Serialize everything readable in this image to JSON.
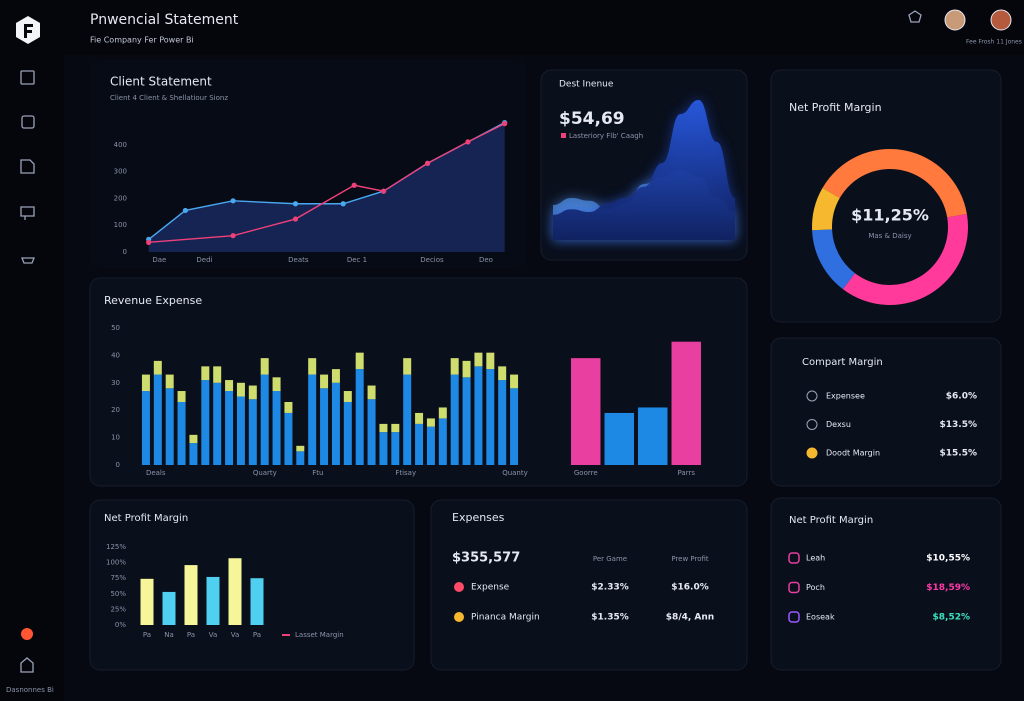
{
  "header": {
    "title": "Pnwencial Statement",
    "subtitle": "Fie Company Fer Power Bi",
    "user": "Fee Frosh 11 Jones"
  },
  "sidebar": {
    "footer": "Dasnonnes Bi"
  },
  "client_statement": {
    "type": "line",
    "title": "Client Statement",
    "subtitle": "Client 4 Client & Shellatiour Sionz",
    "xlim": [
      0,
      100
    ],
    "xticks": [
      {
        "value": 2,
        "label": "Dae"
      },
      {
        "value": 14,
        "label": "Dedi"
      },
      {
        "value": 39,
        "label": "Deats"
      },
      {
        "value": 55,
        "label": "Dec 1"
      },
      {
        "value": 75,
        "label": "Decios"
      },
      {
        "value": 91,
        "label": "Deo"
      }
    ],
    "ylim": [
      0,
      500
    ],
    "yticks": [
      0,
      100,
      200,
      300,
      400
    ],
    "series": [
      {
        "color": "#4aa8f0",
        "fill": "#18295e",
        "x": [
          1,
          11,
          24,
          41,
          54,
          65,
          77,
          98
        ],
        "values": [
          47,
          155,
          191,
          180,
          180,
          227,
          331,
          483
        ]
      },
      {
        "color": "#f0407a",
        "x": [
          1,
          24,
          41,
          57,
          65,
          77,
          88,
          98
        ],
        "values": [
          36,
          61,
          123,
          249,
          227,
          331,
          411,
          479
        ]
      }
    ]
  },
  "dest_revenue": {
    "type": "area",
    "title": "Dest Inenue",
    "value": "$54,69",
    "legend_label": "Lasteriory Flb' Caagh",
    "legend_color": "#f0407a",
    "series": [
      {
        "color": "#5aa0ff",
        "values": [
          25,
          30,
          28,
          22,
          26,
          40,
          45,
          50,
          45,
          30,
          20
        ]
      },
      {
        "color": "#2350d8",
        "values": [
          18,
          22,
          20,
          26,
          30,
          38,
          55,
          90,
          100,
          70,
          30
        ]
      }
    ]
  },
  "net_profit_donut": {
    "type": "donut",
    "title": "Net Profit Margin",
    "center_value": "$11,25%",
    "center_label": "Mas & Daisy",
    "values": [
      39,
      38,
      14,
      9
    ],
    "colors": [
      "#ff7a3c",
      "#ff3a9a",
      "#2f6fe0",
      "#f5b82e"
    ]
  },
  "revenue_expense": {
    "type": "stacked_bar",
    "title": "Revenue Expense",
    "ylim": [
      0,
      50
    ],
    "yticks": [
      0,
      10,
      20,
      30,
      40,
      50
    ],
    "categories": [
      "Deals",
      null,
      null,
      null,
      null,
      null,
      null,
      null,
      null,
      "Quarty",
      null,
      null,
      null,
      null,
      "Ftu",
      null,
      null,
      null,
      null,
      null,
      null,
      "Ftisay",
      null,
      null,
      null,
      null,
      null,
      null,
      null,
      null,
      "Quanty",
      null
    ],
    "series": [
      {
        "color": "#1e88e5",
        "values": [
          27,
          33,
          28,
          23,
          8,
          31,
          30,
          27,
          25,
          24,
          33,
          27,
          19,
          5,
          33,
          28,
          30,
          23,
          35,
          24,
          12,
          12,
          33,
          15,
          14,
          17,
          33,
          32,
          36,
          35,
          31,
          28
        ]
      },
      {
        "color": "#cfdc6e",
        "values": [
          6,
          5,
          5,
          4,
          3,
          5,
          6,
          4,
          5,
          5,
          6,
          5,
          4,
          2,
          6,
          5,
          5,
          4,
          6,
          5,
          3,
          3,
          6,
          4,
          3,
          4,
          6,
          6,
          5,
          6,
          5,
          5
        ]
      }
    ],
    "side": {
      "categories": [
        "Goorre",
        null,
        null,
        "Parrs"
      ],
      "values": [
        39,
        19,
        21,
        45
      ],
      "colors": [
        "#e83fa0",
        "#1e88e5",
        "#1e88e5",
        "#e83fa0"
      ]
    }
  },
  "compart_margin": {
    "title": "Compart Margin",
    "rows": [
      {
        "label": "Expensee",
        "value": "$6.0%"
      },
      {
        "label": "Dexsu",
        "value": "$13.5%"
      },
      {
        "label": "Doodt Margin",
        "value": "$15.5%"
      }
    ]
  },
  "small_bar": {
    "type": "bar",
    "title": "Net Profit Margin",
    "ylim": [
      0,
      125
    ],
    "yticks": [
      {
        "value": 0,
        "label": "0%"
      },
      {
        "value": 25,
        "label": "25%"
      },
      {
        "value": 50,
        "label": "50%"
      },
      {
        "value": 75,
        "label": "75%"
      },
      {
        "value": 100,
        "label": "100%"
      },
      {
        "value": 125,
        "label": "125%"
      }
    ],
    "categories": [
      "Pa",
      "Na",
      "Pa",
      "Va",
      "Va",
      "Pa"
    ],
    "values": [
      74,
      53,
      96,
      77,
      107,
      75
    ],
    "colors": [
      "#f6f59a",
      "#4fd0f0",
      "#f6f59a",
      "#4fd0f0",
      "#f6f59a",
      "#4fd0f0"
    ],
    "legend_label": "Lasset Margin",
    "legend_color": "#f0407a"
  },
  "expenses": {
    "title": "Expenses",
    "total": "$355,577",
    "columns": [
      "Per Game",
      "Prew Profit"
    ],
    "rows": [
      {
        "label": "Expense",
        "values": [
          "$2.33%",
          "$16.0%"
        ]
      },
      {
        "label": "Pinanca Margin",
        "values": [
          "$1.35%",
          "$8/4, Ann"
        ]
      }
    ]
  },
  "profit_list": {
    "title": "Net Profit Margin",
    "rows": [
      {
        "label": "Leah",
        "value": "$10,55%",
        "color": "#ffffff"
      },
      {
        "label": "Poch",
        "value": "$18,59%",
        "color": "#ff3aa8"
      },
      {
        "label": "Eoseak",
        "value": "$8,52%",
        "color": "#3ee0c0"
      }
    ]
  }
}
